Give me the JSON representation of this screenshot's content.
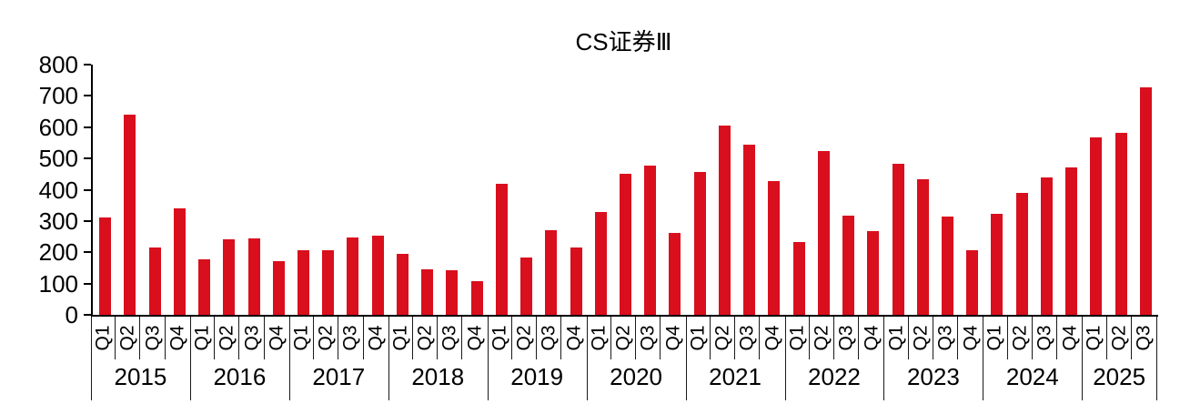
{
  "chart_data": {
    "type": "bar",
    "title": "CS证券Ⅲ",
    "series_name": "CS证券Ⅲ",
    "bar_color": "#d90f1d",
    "xlabel": "",
    "ylabel": "",
    "ylim": [
      0,
      800
    ],
    "y_ticks": [
      0,
      100,
      200,
      300,
      400,
      500,
      600,
      700,
      800
    ],
    "grid": "off",
    "legend": "none",
    "years": [
      {
        "year": "2015",
        "quarters": [
          "Q1",
          "Q2",
          "Q3",
          "Q4"
        ],
        "values": [
          310,
          639,
          214,
          341
        ]
      },
      {
        "year": "2016",
        "quarters": [
          "Q1",
          "Q2",
          "Q3",
          "Q4"
        ],
        "values": [
          177,
          242,
          245,
          173
        ]
      },
      {
        "year": "2017",
        "quarters": [
          "Q1",
          "Q2",
          "Q3",
          "Q4"
        ],
        "values": [
          207,
          207,
          248,
          252
        ]
      },
      {
        "year": "2018",
        "quarters": [
          "Q1",
          "Q2",
          "Q3",
          "Q4"
        ],
        "values": [
          196,
          146,
          143,
          108
        ]
      },
      {
        "year": "2019",
        "quarters": [
          "Q1",
          "Q2",
          "Q3",
          "Q4"
        ],
        "values": [
          420,
          184,
          271,
          214
        ]
      },
      {
        "year": "2020",
        "quarters": [
          "Q1",
          "Q2",
          "Q3",
          "Q4"
        ],
        "values": [
          328,
          452,
          476,
          263
        ]
      },
      {
        "year": "2021",
        "quarters": [
          "Q1",
          "Q2",
          "Q3",
          "Q4"
        ],
        "values": [
          457,
          606,
          543,
          428
        ]
      },
      {
        "year": "2022",
        "quarters": [
          "Q1",
          "Q2",
          "Q3",
          "Q4"
        ],
        "values": [
          232,
          525,
          316,
          267
        ]
      },
      {
        "year": "2023",
        "quarters": [
          "Q1",
          "Q2",
          "Q3",
          "Q4"
        ],
        "values": [
          483,
          433,
          314,
          206
        ]
      },
      {
        "year": "2024",
        "quarters": [
          "Q1",
          "Q2",
          "Q3",
          "Q4"
        ],
        "values": [
          324,
          389,
          440,
          472
        ]
      },
      {
        "year": "2025",
        "quarters": [
          "Q1",
          "Q2",
          "Q3"
        ],
        "values": [
          568,
          582,
          726
        ]
      }
    ]
  }
}
